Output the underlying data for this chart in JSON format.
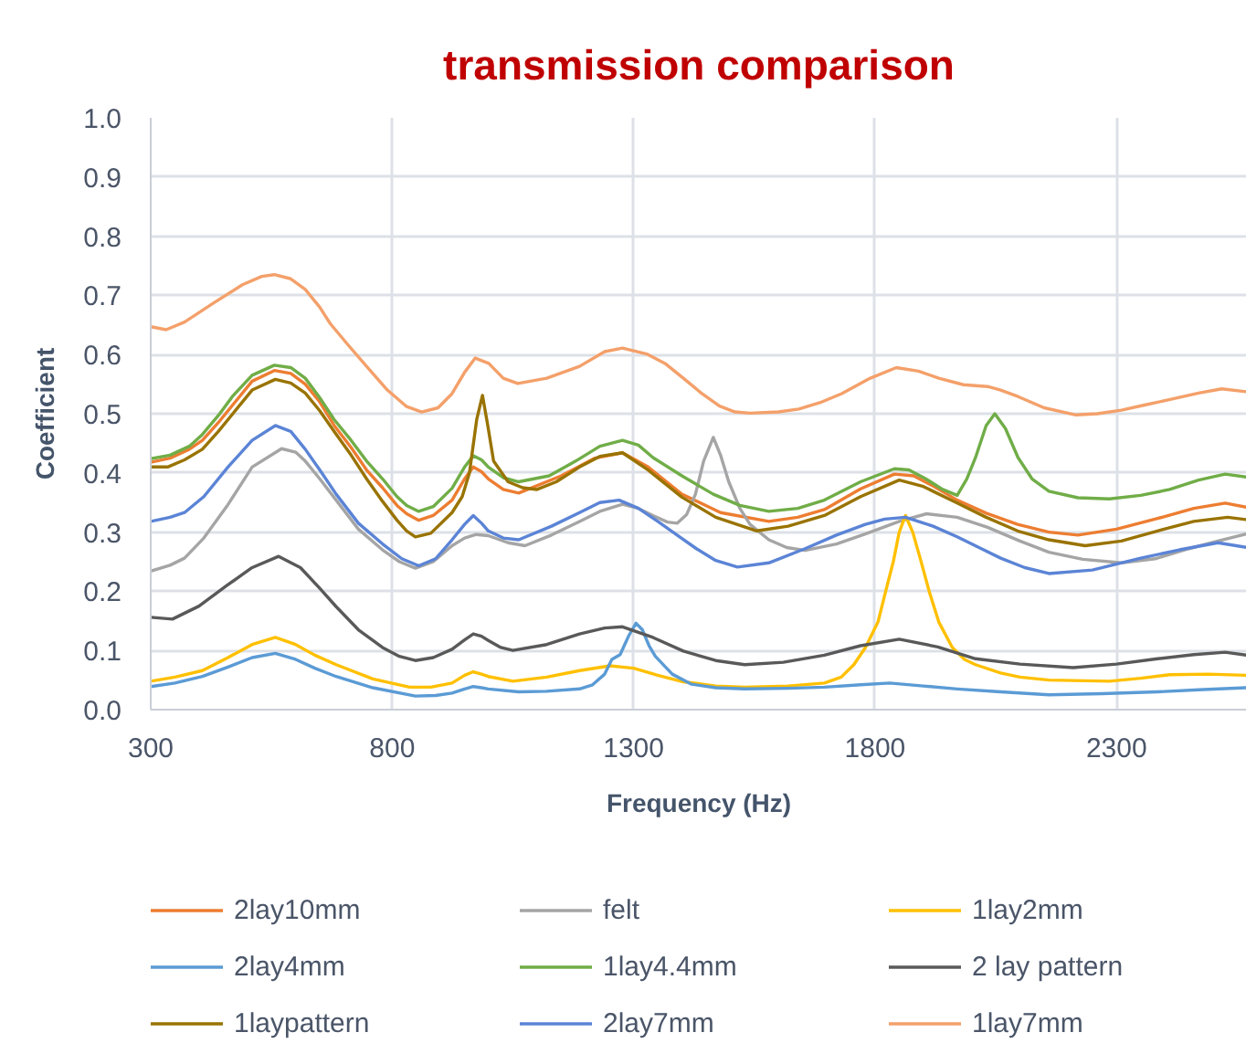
{
  "chart_data": {
    "type": "line",
    "title": "transmission comparison",
    "xlabel": "Frequency (Hz)",
    "ylabel": "Coefficient",
    "xlim": [
      300,
      2570
    ],
    "ylim": [
      0,
      1
    ],
    "xticks": [
      300,
      800,
      1300,
      1800,
      2300
    ],
    "yticks": [
      {
        "value": 0,
        "label": "0.0"
      },
      0.1,
      0.2,
      0.3,
      0.4,
      0.5,
      0.6,
      0.7,
      0.8,
      0.9,
      {
        "value": 1,
        "label": "1.0"
      }
    ],
    "grid": true,
    "legend": "bottom",
    "series": [
      {
        "name": "2lay10mm",
        "color": "#ed7d31",
        "x": [
          300,
          340,
          380,
          407,
          440,
          470,
          510,
          556,
          590,
          620,
          650,
          680,
          715,
          747,
          780,
          810,
          830,
          855,
          885,
          924,
          950,
          968,
          985,
          999,
          1030,
          1062,
          1150,
          1220,
          1277,
          1330,
          1400,
          1480,
          1580,
          1640,
          1695,
          1770,
          1840,
          1880,
          1920,
          1970,
          2030,
          2095,
          2160,
          2220,
          2300,
          2385,
          2460,
          2525,
          2570
        ],
        "values": [
          0.418,
          0.425,
          0.44,
          0.455,
          0.485,
          0.515,
          0.555,
          0.573,
          0.568,
          0.55,
          0.52,
          0.48,
          0.443,
          0.405,
          0.375,
          0.345,
          0.331,
          0.32,
          0.328,
          0.354,
          0.39,
          0.41,
          0.402,
          0.39,
          0.372,
          0.366,
          0.395,
          0.425,
          0.434,
          0.41,
          0.364,
          0.333,
          0.318,
          0.325,
          0.338,
          0.373,
          0.398,
          0.395,
          0.378,
          0.354,
          0.332,
          0.313,
          0.3,
          0.295,
          0.305,
          0.323,
          0.34,
          0.349,
          0.342
        ]
      },
      {
        "name": "felt",
        "color": "#a5a5a5",
        "x": [
          300,
          340,
          370,
          410,
          458,
          510,
          571,
          600,
          620,
          650,
          684,
          730,
          780,
          815,
          848,
          885,
          924,
          950,
          974,
          999,
          1040,
          1075,
          1130,
          1188,
          1230,
          1277,
          1310,
          1340,
          1370,
          1390,
          1410,
          1428,
          1445,
          1465,
          1480,
          1497,
          1520,
          1541,
          1580,
          1617,
          1655,
          1720,
          1780,
          1850,
          1907,
          1970,
          2033,
          2100,
          2160,
          2230,
          2310,
          2380,
          2450,
          2510,
          2570
        ],
        "values": [
          0.234,
          0.244,
          0.256,
          0.29,
          0.344,
          0.41,
          0.441,
          0.435,
          0.42,
          0.39,
          0.354,
          0.305,
          0.27,
          0.25,
          0.239,
          0.25,
          0.277,
          0.29,
          0.296,
          0.294,
          0.282,
          0.277,
          0.295,
          0.318,
          0.335,
          0.347,
          0.34,
          0.328,
          0.317,
          0.315,
          0.33,
          0.364,
          0.42,
          0.46,
          0.43,
          0.385,
          0.34,
          0.313,
          0.287,
          0.274,
          0.269,
          0.28,
          0.297,
          0.318,
          0.331,
          0.325,
          0.308,
          0.285,
          0.266,
          0.254,
          0.248,
          0.255,
          0.272,
          0.285,
          0.297
        ]
      },
      {
        "name": "1lay2mm",
        "color": "#ffc000",
        "x": [
          300,
          350,
          407,
          460,
          510,
          558,
          600,
          640,
          684,
          760,
          836,
          880,
          924,
          950,
          968,
          985,
          999,
          1050,
          1120,
          1188,
          1251,
          1300,
          1350,
          1403,
          1470,
          1530,
          1620,
          1695,
          1730,
          1756,
          1780,
          1806,
          1822,
          1838,
          1850,
          1863,
          1878,
          1895,
          1912,
          1932,
          1960,
          1985,
          2008,
          2060,
          2100,
          2160,
          2285,
          2350,
          2410,
          2490,
          2570
        ],
        "values": [
          0.048,
          0.055,
          0.066,
          0.088,
          0.11,
          0.122,
          0.11,
          0.092,
          0.076,
          0.052,
          0.038,
          0.038,
          0.045,
          0.058,
          0.064,
          0.06,
          0.056,
          0.048,
          0.055,
          0.066,
          0.074,
          0.07,
          0.058,
          0.047,
          0.04,
          0.038,
          0.04,
          0.045,
          0.055,
          0.076,
          0.105,
          0.148,
          0.2,
          0.251,
          0.3,
          0.328,
          0.3,
          0.251,
          0.2,
          0.148,
          0.105,
          0.085,
          0.076,
          0.062,
          0.055,
          0.05,
          0.048,
          0.053,
          0.059,
          0.06,
          0.058
        ]
      },
      {
        "name": "2lay4mm",
        "color": "#5b9bd5",
        "x": [
          300,
          350,
          407,
          460,
          510,
          558,
          600,
          640,
          684,
          760,
          848,
          890,
          924,
          950,
          968,
          985,
          999,
          1062,
          1120,
          1188,
          1215,
          1240,
          1255,
          1272,
          1290,
          1305,
          1318,
          1332,
          1345,
          1380,
          1420,
          1470,
          1530,
          1620,
          1695,
          1770,
          1830,
          1900,
          1970,
          2060,
          2160,
          2270,
          2385,
          2480,
          2570
        ],
        "values": [
          0.039,
          0.045,
          0.056,
          0.072,
          0.088,
          0.095,
          0.085,
          0.07,
          0.056,
          0.037,
          0.023,
          0.024,
          0.028,
          0.035,
          0.039,
          0.037,
          0.035,
          0.03,
          0.031,
          0.035,
          0.042,
          0.06,
          0.085,
          0.093,
          0.125,
          0.146,
          0.135,
          0.108,
          0.09,
          0.06,
          0.043,
          0.037,
          0.035,
          0.036,
          0.038,
          0.042,
          0.045,
          0.04,
          0.035,
          0.03,
          0.025,
          0.027,
          0.03,
          0.034,
          0.037
        ]
      },
      {
        "name": "1lay4.4mm",
        "color": "#70ad47",
        "x": [
          300,
          340,
          380,
          407,
          440,
          470,
          510,
          556,
          590,
          620,
          650,
          680,
          715,
          747,
          780,
          810,
          830,
          855,
          885,
          924,
          950,
          968,
          985,
          999,
          1030,
          1062,
          1125,
          1180,
          1230,
          1277,
          1310,
          1340,
          1400,
          1465,
          1520,
          1580,
          1640,
          1695,
          1770,
          1840,
          1870,
          1905,
          1940,
          1970,
          1990,
          2008,
          2030,
          2048,
          2070,
          2096,
          2125,
          2160,
          2220,
          2285,
          2350,
          2410,
          2470,
          2525,
          2570
        ],
        "values": [
          0.424,
          0.43,
          0.445,
          0.465,
          0.497,
          0.53,
          0.565,
          0.582,
          0.578,
          0.56,
          0.527,
          0.49,
          0.455,
          0.42,
          0.39,
          0.36,
          0.345,
          0.335,
          0.343,
          0.374,
          0.41,
          0.429,
          0.422,
          0.41,
          0.392,
          0.385,
          0.395,
          0.42,
          0.445,
          0.455,
          0.447,
          0.426,
          0.395,
          0.364,
          0.345,
          0.335,
          0.34,
          0.354,
          0.385,
          0.407,
          0.405,
          0.39,
          0.372,
          0.362,
          0.39,
          0.426,
          0.48,
          0.5,
          0.475,
          0.426,
          0.39,
          0.369,
          0.358,
          0.356,
          0.362,
          0.372,
          0.388,
          0.398,
          0.393
        ]
      },
      {
        "name": "2 lay pattern",
        "color": "#595959",
        "x": [
          300,
          345,
          400,
          458,
          510,
          565,
          610,
          650,
          684,
          730,
          780,
          815,
          848,
          885,
          924,
          950,
          968,
          985,
          999,
          1025,
          1050,
          1120,
          1188,
          1240,
          1277,
          1340,
          1403,
          1470,
          1530,
          1610,
          1695,
          1770,
          1850,
          1930,
          2008,
          2100,
          2210,
          2300,
          2385,
          2460,
          2525,
          2570
        ],
        "values": [
          0.156,
          0.153,
          0.175,
          0.21,
          0.24,
          0.259,
          0.24,
          0.205,
          0.174,
          0.135,
          0.105,
          0.09,
          0.083,
          0.088,
          0.102,
          0.118,
          0.128,
          0.124,
          0.117,
          0.105,
          0.1,
          0.11,
          0.128,
          0.138,
          0.14,
          0.122,
          0.099,
          0.083,
          0.076,
          0.08,
          0.092,
          0.108,
          0.119,
          0.106,
          0.086,
          0.077,
          0.071,
          0.077,
          0.086,
          0.093,
          0.097,
          0.092
        ]
      },
      {
        "name": "1laypattern",
        "color": "#997300",
        "x": [
          300,
          335,
          370,
          407,
          440,
          470,
          510,
          558,
          590,
          620,
          650,
          680,
          715,
          747,
          780,
          810,
          830,
          848,
          880,
          924,
          945,
          960,
          975,
          987,
          998,
          1010,
          1040,
          1070,
          1100,
          1140,
          1188,
          1230,
          1277,
          1330,
          1400,
          1470,
          1555,
          1620,
          1695,
          1770,
          1850,
          1900,
          1970,
          2030,
          2095,
          2160,
          2235,
          2310,
          2385,
          2460,
          2530,
          2570
        ],
        "values": [
          0.41,
          0.41,
          0.422,
          0.44,
          0.47,
          0.5,
          0.54,
          0.558,
          0.552,
          0.535,
          0.505,
          0.47,
          0.43,
          0.39,
          0.352,
          0.32,
          0.302,
          0.292,
          0.298,
          0.333,
          0.36,
          0.4,
          0.49,
          0.531,
          0.48,
          0.42,
          0.385,
          0.375,
          0.372,
          0.385,
          0.41,
          0.428,
          0.434,
          0.405,
          0.359,
          0.325,
          0.302,
          0.31,
          0.328,
          0.36,
          0.388,
          0.377,
          0.349,
          0.325,
          0.302,
          0.287,
          0.277,
          0.285,
          0.302,
          0.318,
          0.325,
          0.321
        ]
      },
      {
        "name": "2lay7mm",
        "color": "#5b84d6",
        "x": [
          300,
          340,
          370,
          410,
          460,
          510,
          558,
          590,
          620,
          650,
          684,
          730,
          780,
          820,
          855,
          890,
          924,
          950,
          968,
          985,
          999,
          1030,
          1062,
          1130,
          1188,
          1230,
          1270,
          1310,
          1350,
          1390,
          1430,
          1470,
          1515,
          1580,
          1655,
          1720,
          1780,
          1820,
          1863,
          1920,
          1970,
          2020,
          2060,
          2110,
          2160,
          2250,
          2350,
          2430,
          2510,
          2570
        ],
        "values": [
          0.318,
          0.325,
          0.333,
          0.36,
          0.41,
          0.455,
          0.48,
          0.47,
          0.44,
          0.405,
          0.364,
          0.315,
          0.28,
          0.255,
          0.243,
          0.255,
          0.287,
          0.313,
          0.328,
          0.315,
          0.302,
          0.29,
          0.287,
          0.31,
          0.333,
          0.35,
          0.354,
          0.34,
          0.318,
          0.295,
          0.272,
          0.252,
          0.241,
          0.248,
          0.272,
          0.295,
          0.313,
          0.322,
          0.325,
          0.31,
          0.292,
          0.272,
          0.256,
          0.24,
          0.23,
          0.236,
          0.256,
          0.27,
          0.282,
          0.274
        ]
      },
      {
        "name": "1lay7mm",
        "color": "#f4a06a",
        "x": [
          300,
          332,
          370,
          432,
          490,
          530,
          556,
          590,
          620,
          650,
          672,
          710,
          747,
          790,
          830,
          861,
          895,
          924,
          950,
          972,
          1000,
          1030,
          1060,
          1120,
          1188,
          1240,
          1277,
          1327,
          1365,
          1403,
          1440,
          1478,
          1510,
          1541,
          1600,
          1642,
          1690,
          1731,
          1790,
          1844,
          1890,
          1932,
          1983,
          2033,
          2060,
          2096,
          2150,
          2216,
          2260,
          2310,
          2360,
          2411,
          2470,
          2518,
          2570
        ],
        "values": [
          0.647,
          0.642,
          0.655,
          0.688,
          0.718,
          0.732,
          0.735,
          0.728,
          0.71,
          0.68,
          0.652,
          0.615,
          0.58,
          0.54,
          0.512,
          0.503,
          0.51,
          0.534,
          0.57,
          0.594,
          0.585,
          0.56,
          0.551,
          0.56,
          0.58,
          0.605,
          0.611,
          0.601,
          0.585,
          0.56,
          0.535,
          0.513,
          0.503,
          0.501,
          0.503,
          0.508,
          0.52,
          0.534,
          0.56,
          0.578,
          0.572,
          0.56,
          0.549,
          0.546,
          0.54,
          0.529,
          0.51,
          0.498,
          0.5,
          0.506,
          0.515,
          0.524,
          0.535,
          0.542,
          0.537
        ]
      }
    ]
  }
}
